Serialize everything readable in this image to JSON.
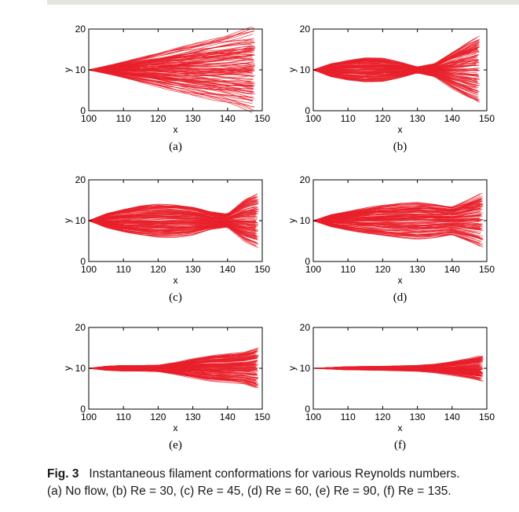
{
  "caption": {
    "figure_number": "Fig. 3",
    "line1": "Instantaneous filament conformations for various Reynolds numbers.",
    "line2": "(a) No flow, (b) Re = 30, (c) Re = 45, (d) Re = 60, (e) Re = 90, (f) Re = 135."
  },
  "colors": {
    "filament": "#e8202a",
    "axis": "#000000",
    "header_bar": "#e6e4df"
  },
  "chart_data": [
    {
      "panel": "(a)",
      "type": "line",
      "xlabel": "x",
      "ylabel": "y",
      "xlim": [
        100,
        150
      ],
      "ylim": [
        0,
        20
      ],
      "xticks": [
        "100",
        "110",
        "120",
        "130",
        "140",
        "150"
      ],
      "yticks": [
        "0",
        "10",
        "20"
      ],
      "filament_count": 120,
      "x_end": 148,
      "origin": [
        100,
        10
      ],
      "envelope": {
        "x": [
          100,
          110,
          120,
          130,
          140,
          148
        ],
        "half_width": [
          0,
          1.9,
          3.8,
          5.8,
          7.7,
          9.4
        ]
      }
    },
    {
      "panel": "(b)",
      "type": "line",
      "xlabel": "x",
      "ylabel": "y",
      "xlim": [
        100,
        150
      ],
      "ylim": [
        0,
        20
      ],
      "xticks": [
        "100",
        "110",
        "120",
        "130",
        "140",
        "150"
      ],
      "yticks": [
        "0",
        "10",
        "20"
      ],
      "filament_count": 120,
      "x_end": 148,
      "origin": [
        100,
        10
      ],
      "envelope": {
        "x": [
          100,
          105,
          110,
          115,
          120,
          125,
          130,
          135,
          140,
          145,
          148
        ],
        "half_width": [
          0,
          1.6,
          2.4,
          2.9,
          2.7,
          1.8,
          0.7,
          1.5,
          4.2,
          6.5,
          7.6
        ]
      }
    },
    {
      "panel": "(c)",
      "type": "line",
      "xlabel": "x",
      "ylabel": "y",
      "xlim": [
        100,
        150
      ],
      "ylim": [
        0,
        20
      ],
      "xticks": [
        "100",
        "110",
        "120",
        "130",
        "140",
        "150"
      ],
      "yticks": [
        "0",
        "10",
        "20"
      ],
      "filament_count": 120,
      "x_end": 149,
      "origin": [
        100,
        10
      ],
      "envelope": {
        "x": [
          100,
          105,
          110,
          115,
          120,
          125,
          130,
          135,
          140,
          145,
          149
        ],
        "half_width": [
          0,
          1.7,
          2.7,
          3.5,
          3.9,
          3.8,
          3.3,
          2.1,
          1.5,
          4.8,
          6.3
        ]
      }
    },
    {
      "panel": "(d)",
      "type": "line",
      "xlabel": "x",
      "ylabel": "y",
      "xlim": [
        100,
        150
      ],
      "ylim": [
        0,
        20
      ],
      "xticks": [
        "100",
        "110",
        "120",
        "130",
        "140",
        "150"
      ],
      "yticks": [
        "0",
        "10",
        "20"
      ],
      "filament_count": 120,
      "x_end": 149,
      "origin": [
        100,
        10
      ],
      "envelope": {
        "x": [
          100,
          105,
          110,
          115,
          120,
          125,
          130,
          135,
          140,
          145,
          149
        ],
        "half_width": [
          0,
          1.4,
          2.2,
          2.9,
          3.5,
          4.0,
          4.2,
          3.9,
          3.3,
          4.8,
          6.2
        ]
      }
    },
    {
      "panel": "(e)",
      "type": "line",
      "xlabel": "x",
      "ylabel": "y",
      "xlim": [
        100,
        150
      ],
      "ylim": [
        0,
        20
      ],
      "xticks": [
        "100",
        "110",
        "120",
        "130",
        "140",
        "150"
      ],
      "yticks": [
        "0",
        "10",
        "20"
      ],
      "filament_count": 120,
      "x_end": 149,
      "origin": [
        100,
        10
      ],
      "envelope": {
        "x": [
          100,
          105,
          110,
          115,
          120,
          125,
          130,
          135,
          140,
          145,
          149
        ],
        "half_width": [
          0,
          0.5,
          0.7,
          0.7,
          0.8,
          1.4,
          2.2,
          2.9,
          3.3,
          3.7,
          4.8
        ]
      }
    },
    {
      "panel": "(f)",
      "type": "line",
      "xlabel": "x",
      "ylabel": "y",
      "xlim": [
        100,
        150
      ],
      "ylim": [
        0,
        20
      ],
      "xticks": [
        "100",
        "110",
        "120",
        "130",
        "140",
        "150"
      ],
      "yticks": [
        "0",
        "10",
        "20"
      ],
      "filament_count": 120,
      "x_end": 149,
      "origin": [
        100,
        10
      ],
      "envelope": {
        "x": [
          100,
          110,
          120,
          130,
          135,
          140,
          145,
          149
        ],
        "half_width": [
          0,
          0.4,
          0.5,
          0.7,
          1.0,
          1.6,
          2.3,
          3.1
        ]
      }
    }
  ]
}
